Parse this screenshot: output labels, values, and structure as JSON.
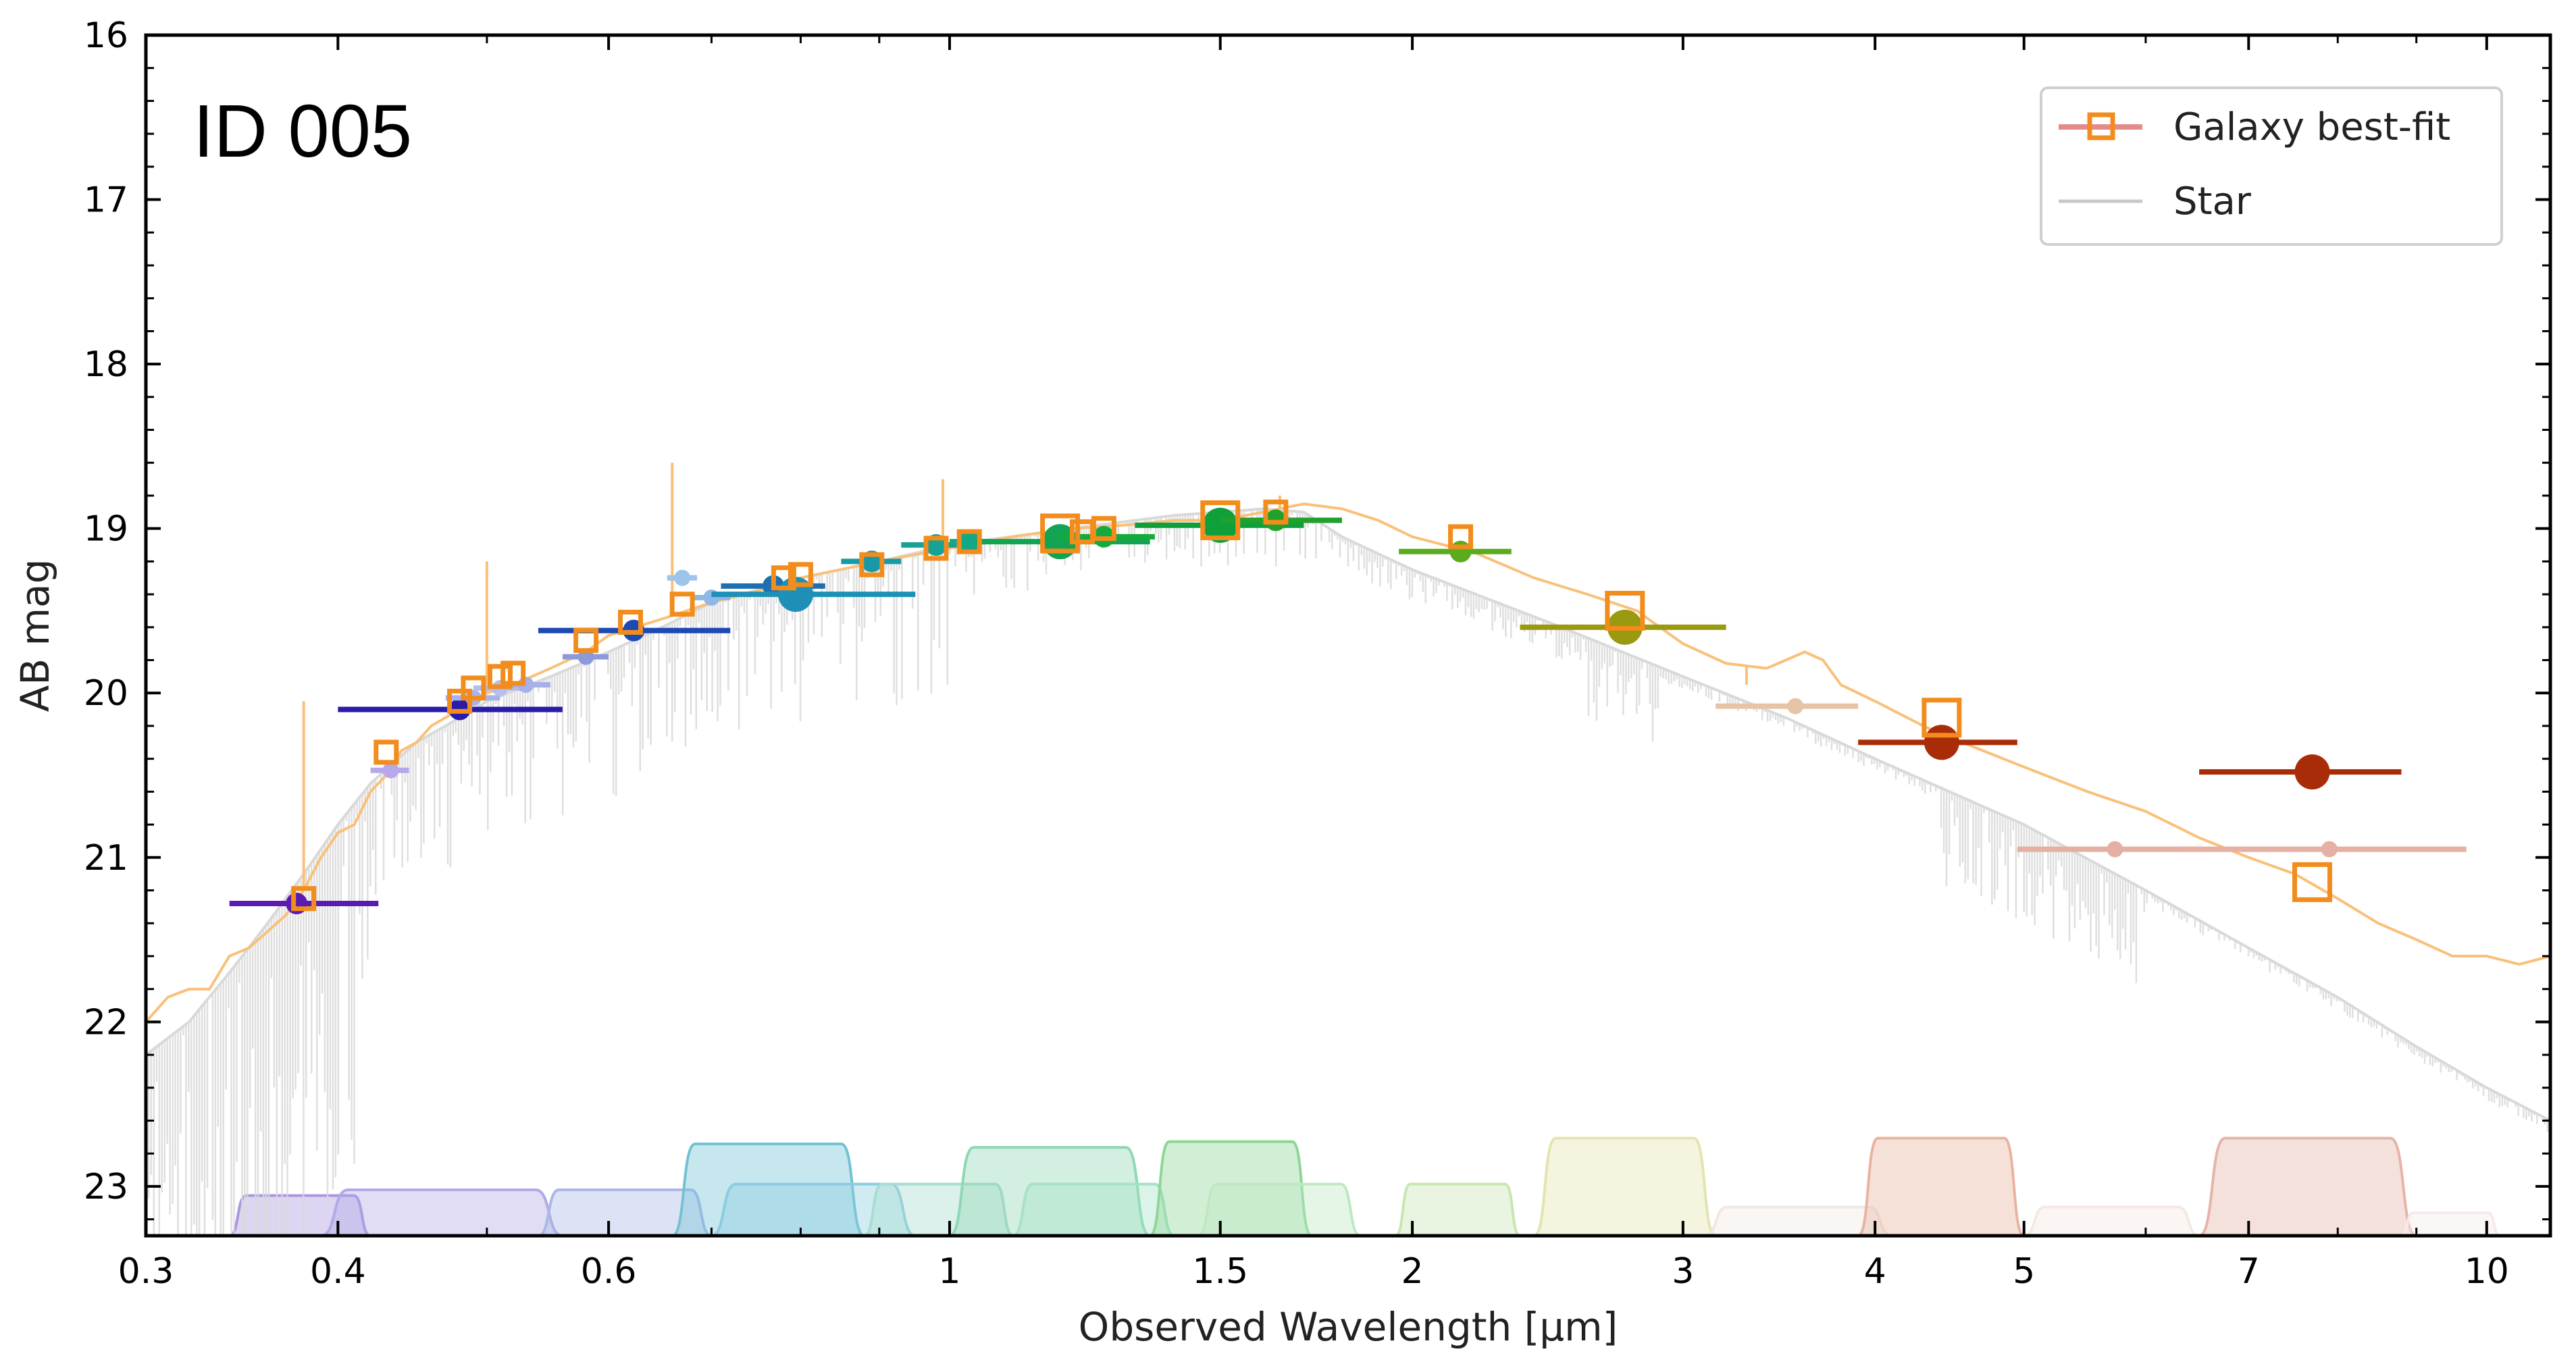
{
  "chart_data": {
    "type": "scatter",
    "annotation": "ID 005",
    "xlabel": "Observed Wavelength [μm]",
    "ylabel": "AB mag",
    "xscale": "log",
    "xlim": [
      0.3,
      11
    ],
    "ylim": [
      23.3,
      16
    ],
    "x_ticks": [
      {
        "value": 0.3,
        "label": "0.3"
      },
      {
        "value": 0.4,
        "label": "0.4"
      },
      {
        "value": 0.6,
        "label": "0.6"
      },
      {
        "value": 1,
        "label": "1"
      },
      {
        "value": 1.5,
        "label": "1.5"
      },
      {
        "value": 2,
        "label": "2"
      },
      {
        "value": 3,
        "label": "3"
      },
      {
        "value": 4,
        "label": "4"
      },
      {
        "value": 5,
        "label": "5"
      },
      {
        "value": 7,
        "label": "7"
      },
      {
        "value": 10,
        "label": "10"
      }
    ],
    "y_ticks": [
      {
        "value": 16,
        "label": "16"
      },
      {
        "value": 17,
        "label": "17"
      },
      {
        "value": 18,
        "label": "18"
      },
      {
        "value": 19,
        "label": "19"
      },
      {
        "value": 20,
        "label": "20"
      },
      {
        "value": 21,
        "label": "21"
      },
      {
        "value": 22,
        "label": "22"
      },
      {
        "value": 23,
        "label": "23"
      }
    ],
    "legend": {
      "position": "top-right",
      "entries": [
        {
          "label": "Galaxy best-fit",
          "line_color": "#e48a8a",
          "marker_color": "#f28c1c"
        },
        {
          "label": "Star",
          "line_color": "#c8c8c8"
        }
      ]
    },
    "galaxy_model": {
      "color": "#f9c07a",
      "points": [
        [
          0.3,
          22.0
        ],
        [
          0.31,
          21.85
        ],
        [
          0.32,
          21.8
        ],
        [
          0.33,
          21.8
        ],
        [
          0.34,
          21.6
        ],
        [
          0.35,
          21.55
        ],
        [
          0.36,
          21.45
        ],
        [
          0.37,
          21.35
        ],
        [
          0.38,
          21.2
        ],
        [
          0.39,
          21.0
        ],
        [
          0.4,
          20.85
        ],
        [
          0.41,
          20.8
        ],
        [
          0.42,
          20.6
        ],
        [
          0.43,
          20.5
        ],
        [
          0.44,
          20.35
        ],
        [
          0.45,
          20.3
        ],
        [
          0.46,
          20.2
        ],
        [
          0.48,
          20.1
        ],
        [
          0.5,
          20.0
        ],
        [
          0.52,
          19.95
        ],
        [
          0.55,
          19.85
        ],
        [
          0.58,
          19.75
        ],
        [
          0.6,
          19.65
        ],
        [
          0.65,
          19.55
        ],
        [
          0.7,
          19.45
        ],
        [
          0.75,
          19.38
        ],
        [
          0.8,
          19.3
        ],
        [
          0.9,
          19.2
        ],
        [
          1.0,
          19.12
        ],
        [
          1.1,
          19.05
        ],
        [
          1.2,
          19.0
        ],
        [
          1.3,
          18.98
        ],
        [
          1.4,
          18.95
        ],
        [
          1.5,
          18.95
        ],
        [
          1.6,
          18.9
        ],
        [
          1.7,
          18.85
        ],
        [
          1.8,
          18.88
        ],
        [
          1.9,
          18.95
        ],
        [
          2.0,
          19.05
        ],
        [
          2.2,
          19.15
        ],
        [
          2.4,
          19.3
        ],
        [
          2.6,
          19.4
        ],
        [
          2.8,
          19.5
        ],
        [
          3.0,
          19.7
        ],
        [
          3.2,
          19.82
        ],
        [
          3.4,
          19.85
        ],
        [
          3.5,
          19.8
        ],
        [
          3.6,
          19.75
        ],
        [
          3.7,
          19.8
        ],
        [
          3.8,
          19.95
        ],
        [
          4.0,
          20.05
        ],
        [
          4.3,
          20.2
        ],
        [
          4.5,
          20.28
        ],
        [
          5.0,
          20.45
        ],
        [
          5.5,
          20.6
        ],
        [
          6.0,
          20.72
        ],
        [
          6.5,
          20.88
        ],
        [
          7.0,
          21.0
        ],
        [
          7.5,
          21.1
        ],
        [
          8.0,
          21.25
        ],
        [
          8.5,
          21.4
        ],
        [
          9.0,
          21.5
        ],
        [
          9.5,
          21.6
        ],
        [
          10.0,
          21.6
        ],
        [
          10.5,
          21.65
        ],
        [
          11.0,
          21.6
        ]
      ]
    },
    "star_model": {
      "color": "#d9d9d9",
      "points": [
        [
          0.3,
          22.2
        ],
        [
          0.32,
          22.0
        ],
        [
          0.34,
          21.7
        ],
        [
          0.36,
          21.4
        ],
        [
          0.38,
          21.1
        ],
        [
          0.4,
          20.8
        ],
        [
          0.42,
          20.55
        ],
        [
          0.45,
          20.3
        ],
        [
          0.48,
          20.15
        ],
        [
          0.5,
          20.05
        ],
        [
          0.55,
          19.9
        ],
        [
          0.6,
          19.75
        ],
        [
          0.65,
          19.6
        ],
        [
          0.7,
          19.45
        ],
        [
          0.8,
          19.3
        ],
        [
          0.9,
          19.2
        ],
        [
          1.0,
          19.1
        ],
        [
          1.2,
          19.0
        ],
        [
          1.4,
          18.92
        ],
        [
          1.6,
          18.88
        ],
        [
          1.7,
          18.9
        ],
        [
          1.8,
          19.05
        ],
        [
          2.0,
          19.25
        ],
        [
          2.2,
          19.4
        ],
        [
          2.5,
          19.6
        ],
        [
          3.0,
          19.9
        ],
        [
          3.5,
          20.15
        ],
        [
          4.0,
          20.4
        ],
        [
          5.0,
          20.8
        ],
        [
          6.0,
          21.2
        ],
        [
          7.0,
          21.55
        ],
        [
          8.0,
          21.85
        ],
        [
          9.0,
          22.15
        ],
        [
          10.0,
          22.4
        ],
        [
          11.0,
          22.6
        ]
      ]
    },
    "model_photometry": [
      {
        "x": 0.38,
        "y": 21.25,
        "size": "small"
      },
      {
        "x": 0.43,
        "y": 20.36,
        "size": "small"
      },
      {
        "x": 0.48,
        "y": 20.05,
        "size": "small"
      },
      {
        "x": 0.49,
        "y": 19.97,
        "size": "small"
      },
      {
        "x": 0.51,
        "y": 19.9,
        "size": "small"
      },
      {
        "x": 0.52,
        "y": 19.88,
        "size": "small"
      },
      {
        "x": 0.58,
        "y": 19.68,
        "size": "small"
      },
      {
        "x": 0.62,
        "y": 19.57,
        "size": "small"
      },
      {
        "x": 0.67,
        "y": 19.46,
        "size": "small"
      },
      {
        "x": 0.78,
        "y": 19.3,
        "size": "small"
      },
      {
        "x": 0.8,
        "y": 19.28,
        "size": "small"
      },
      {
        "x": 0.89,
        "y": 19.22,
        "size": "small"
      },
      {
        "x": 0.98,
        "y": 19.12,
        "size": "small"
      },
      {
        "x": 1.03,
        "y": 19.08,
        "size": "small"
      },
      {
        "x": 1.18,
        "y": 19.03,
        "size": "large"
      },
      {
        "x": 1.22,
        "y": 19.02,
        "size": "small"
      },
      {
        "x": 1.26,
        "y": 19.0,
        "size": "small"
      },
      {
        "x": 1.5,
        "y": 18.95,
        "size": "large"
      },
      {
        "x": 1.63,
        "y": 18.9,
        "size": "small"
      },
      {
        "x": 2.15,
        "y": 19.05,
        "size": "small"
      },
      {
        "x": 2.75,
        "y": 19.5,
        "size": "large"
      },
      {
        "x": 4.42,
        "y": 20.15,
        "size": "large"
      },
      {
        "x": 7.7,
        "y": 21.15,
        "size": "large"
      }
    ],
    "observed_photometry": [
      {
        "x": 0.376,
        "y": 21.28,
        "xerr": [
          0.34,
          0.425
        ],
        "color": "#5a1bb0",
        "size": "medium"
      },
      {
        "x": 0.433,
        "y": 20.47,
        "xerr": [
          0.42,
          0.445
        ],
        "color": "#b6a8ea",
        "size": "small"
      },
      {
        "x": 0.48,
        "y": 20.1,
        "xerr": [
          0.4,
          0.56
        ],
        "color": "#2a1ba8",
        "size": "medium"
      },
      {
        "x": 0.49,
        "y": 20.03,
        "xerr": [
          0.47,
          0.51
        ],
        "color": "#aab2ea",
        "size": "small"
      },
      {
        "x": 0.51,
        "y": 19.97,
        "xerr": [
          0.49,
          0.53
        ],
        "color": "#b4bef0",
        "size": "small"
      },
      {
        "x": 0.53,
        "y": 19.95,
        "xerr": [
          0.51,
          0.55
        ],
        "color": "#a8b0e8",
        "size": "small"
      },
      {
        "x": 0.58,
        "y": 19.78,
        "xerr": [
          0.56,
          0.6
        ],
        "color": "#8c9adc",
        "size": "small"
      },
      {
        "x": 0.623,
        "y": 19.62,
        "xerr": [
          0.54,
          0.72
        ],
        "color": "#1c4ab4",
        "size": "medium"
      },
      {
        "x": 0.67,
        "y": 19.3,
        "xerr": [
          0.655,
          0.685
        ],
        "color": "#9ec4ec",
        "size": "small"
      },
      {
        "x": 0.7,
        "y": 19.42,
        "xerr": [
          0.68,
          0.72
        ],
        "color": "#8fb8e6",
        "size": "small"
      },
      {
        "x": 0.768,
        "y": 19.35,
        "xerr": [
          0.71,
          0.83
        ],
        "color": "#1c6fb0",
        "size": "medium"
      },
      {
        "x": 0.794,
        "y": 19.4,
        "xerr": [
          0.7,
          0.95
        ],
        "color": "#1e90b8",
        "size": "large"
      },
      {
        "x": 0.89,
        "y": 19.2,
        "xerr": [
          0.85,
          0.93
        ],
        "color": "#179aa6",
        "size": "medium"
      },
      {
        "x": 0.98,
        "y": 19.1,
        "xerr": [
          0.93,
          1.03
        ],
        "color": "#16a294",
        "size": "medium"
      },
      {
        "x": 1.03,
        "y": 19.08,
        "xerr": [
          1.0,
          1.06
        ],
        "color": "#13a886",
        "size": "medium"
      },
      {
        "x": 1.18,
        "y": 19.08,
        "xerr": [
          1.04,
          1.35
        ],
        "color": "#12a452",
        "size": "large"
      },
      {
        "x": 1.26,
        "y": 19.05,
        "xerr": [
          1.18,
          1.36
        ],
        "color": "#14aa3c",
        "size": "medium"
      },
      {
        "x": 1.5,
        "y": 18.98,
        "xerr": [
          1.32,
          1.7
        ],
        "color": "#10a03a",
        "size": "large"
      },
      {
        "x": 1.63,
        "y": 18.95,
        "xerr": [
          1.5,
          1.8
        ],
        "color": "#22a02c",
        "size": "medium"
      },
      {
        "x": 2.15,
        "y": 19.14,
        "xerr": [
          1.96,
          2.32
        ],
        "color": "#5aab1e",
        "size": "medium"
      },
      {
        "x": 2.75,
        "y": 19.6,
        "xerr": [
          2.35,
          3.2
        ],
        "color": "#9a9a10",
        "size": "large"
      },
      {
        "x": 3.55,
        "y": 20.08,
        "xerr": [
          3.15,
          3.9
        ],
        "color": "#e6c4a8",
        "size": "small"
      },
      {
        "x": 4.42,
        "y": 20.3,
        "xerr": [
          3.9,
          4.95
        ],
        "color": "#a82c08",
        "size": "large"
      },
      {
        "x": 5.73,
        "y": 20.95,
        "xerr": [
          4.95,
          6.5
        ],
        "color": "#e4b0a4",
        "size": "small"
      },
      {
        "x": 7.7,
        "y": 20.48,
        "xerr": [
          6.5,
          8.8
        ],
        "color": "#a82c08",
        "size": "large"
      },
      {
        "x": 7.9,
        "y": 20.95,
        "xerr": [
          6.3,
          9.7
        ],
        "color": "#e6b0a4",
        "size": "small"
      }
    ],
    "filters": [
      {
        "lo": 0.34,
        "hi": 0.42,
        "peak": 0.35,
        "color": "#a996df"
      },
      {
        "lo": 0.39,
        "hi": 0.56,
        "peak": 0.4,
        "color": "#b2aae6"
      },
      {
        "lo": 0.54,
        "hi": 0.7,
        "peak": 0.4,
        "color": "#a9b8e6"
      },
      {
        "lo": 0.66,
        "hi": 0.88,
        "peak": 0.8,
        "color": "#72c2d4"
      },
      {
        "lo": 0.7,
        "hi": 0.95,
        "peak": 0.45,
        "color": "#8ccce0"
      },
      {
        "lo": 0.88,
        "hi": 1.1,
        "peak": 0.45,
        "color": "#a8ddd0"
      },
      {
        "lo": 1.0,
        "hi": 1.35,
        "peak": 0.77,
        "color": "#8ed8b4"
      },
      {
        "lo": 1.1,
        "hi": 1.4,
        "peak": 0.45,
        "color": "#a6e2c6"
      },
      {
        "lo": 1.35,
        "hi": 1.72,
        "peak": 0.82,
        "color": "#8ed698"
      },
      {
        "lo": 1.45,
        "hi": 1.85,
        "peak": 0.45,
        "color": "#bfe8c2"
      },
      {
        "lo": 1.95,
        "hi": 2.35,
        "peak": 0.45,
        "color": "#c8e6b2"
      },
      {
        "lo": 2.4,
        "hi": 3.15,
        "peak": 0.85,
        "color": "#e4e4b0"
      },
      {
        "lo": 3.1,
        "hi": 4.1,
        "peak": 0.25,
        "color": "#f0e8e2"
      },
      {
        "lo": 3.9,
        "hi": 5.0,
        "peak": 0.85,
        "color": "#e8b4a0"
      },
      {
        "lo": 5.0,
        "hi": 6.5,
        "peak": 0.25,
        "color": "#f5e8e4"
      },
      {
        "lo": 6.5,
        "hi": 9.0,
        "peak": 0.85,
        "color": "#e6b4a8"
      },
      {
        "lo": 8.8,
        "hi": 10.2,
        "peak": 0.2,
        "color": "#f6eaea"
      }
    ],
    "grid": false
  }
}
